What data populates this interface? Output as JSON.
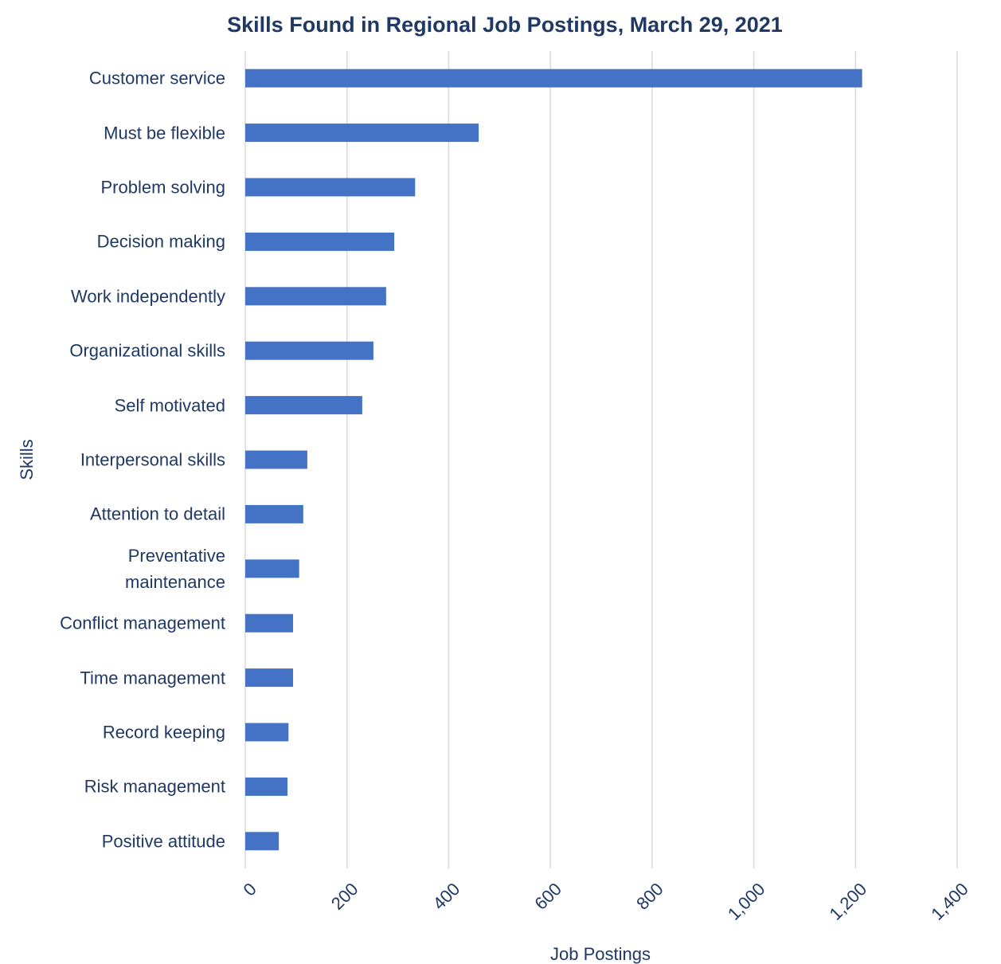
{
  "chart_data": {
    "type": "bar",
    "orientation": "horizontal",
    "title": "Skills Found in Regional Job Postings, March 29, 2021",
    "x_label": "Job Postings",
    "y_label": "Skills",
    "categories": [
      "Customer service",
      "Must be flexible",
      "Problem solving",
      "Decision making",
      "Work independently",
      "Organizational skills",
      "Self motivated",
      "Interpersonal skills",
      "Attention to detail",
      "Preventative maintenance",
      "Conflict management",
      "Time management",
      "Record keeping",
      "Risk management",
      "Positive attitude"
    ],
    "values": [
      1213,
      459,
      334,
      293,
      277,
      252,
      230,
      122,
      114,
      106,
      94,
      94,
      85,
      83,
      66
    ],
    "color": "#4472c4",
    "xlim": [
      0,
      1400
    ],
    "xticks": [
      0,
      200,
      400,
      600,
      800,
      {
        "value": 1000,
        "label": "1,000"
      },
      {
        "value": 1200,
        "label": "1,200"
      },
      {
        "value": 1400,
        "label": "1,400"
      }
    ],
    "grid": true
  }
}
